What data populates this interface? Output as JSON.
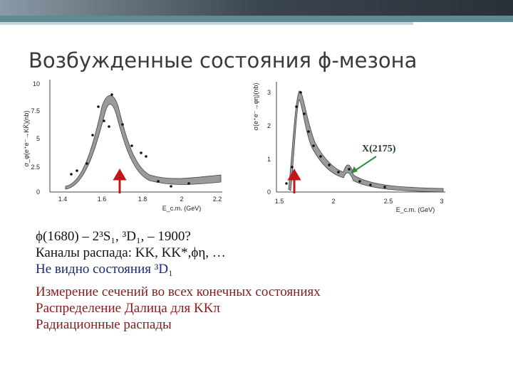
{
  "title": "Возбужденные состояния ϕ-мезона",
  "plots": [
    {
      "y_label": "σ_φ(e⁺e⁻→KK̄)(nb)",
      "yticks": [
        "0",
        "2.5",
        "5",
        "7.5",
        "10"
      ],
      "xticks": [
        "1.4",
        "1.6",
        "1.8",
        "2",
        "2.2"
      ],
      "x_label": "E_c.m. (GeV)"
    },
    {
      "y_label": "σ(e⁺e⁻→φη)(nb)",
      "yticks": [
        "0",
        "1",
        "2",
        "3"
      ],
      "xticks": [
        "1.5",
        "2",
        "2.5",
        "3"
      ],
      "x_label": "E_c.m. (GeV)",
      "annotation": "X(2175)"
    }
  ],
  "lines": [
    "ϕ(1680) – 2³S₁,  ³D₁, – 1900?",
    "Каналы распада: KK, KK*,ϕη, …",
    "Не видно состояния ³D₁",
    "Измерение сечений во всех конечных состояниях",
    "Распределение Далица для KKπ",
    "Радиационные распады"
  ]
}
